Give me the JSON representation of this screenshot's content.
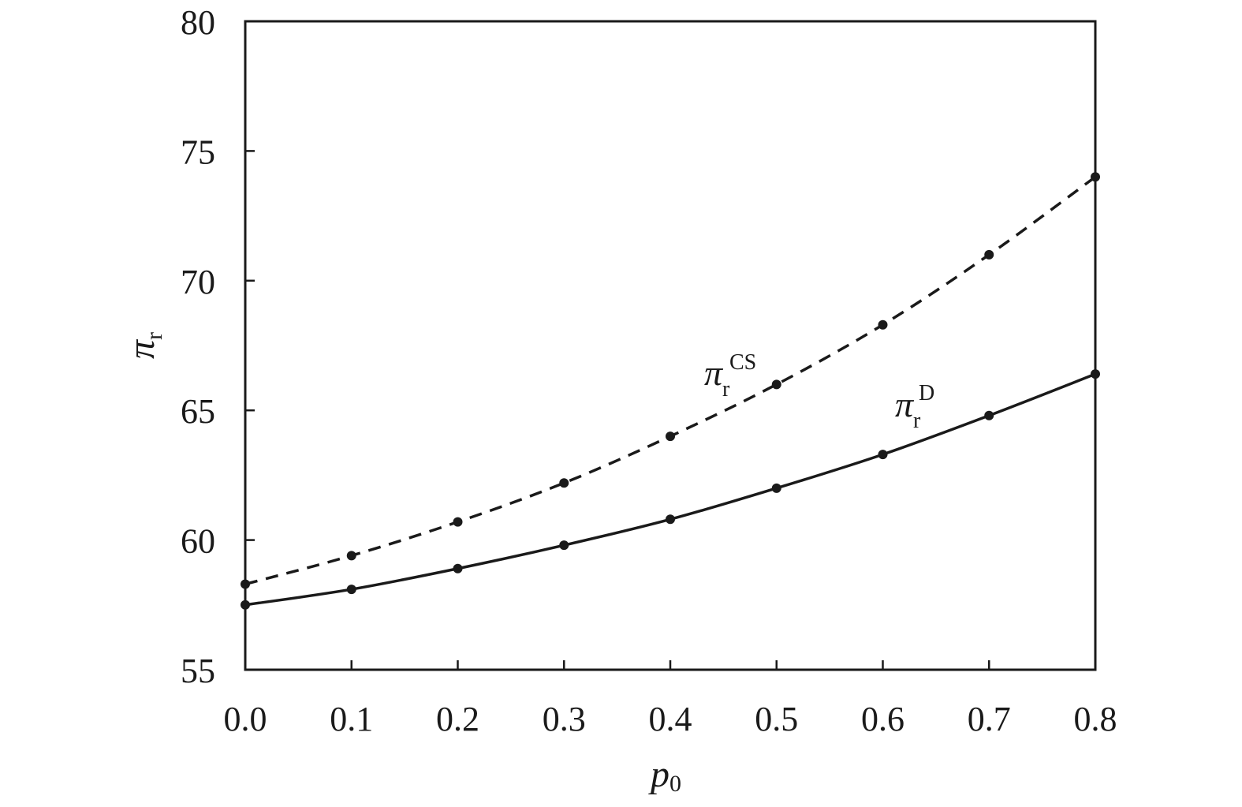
{
  "chart_data": {
    "type": "line",
    "x": [
      0.0,
      0.1,
      0.2,
      0.3,
      0.4,
      0.5,
      0.6,
      0.7,
      0.8
    ],
    "xlim": [
      0.0,
      0.8
    ],
    "ylim": [
      55,
      80
    ],
    "x_ticks": [
      "0.0",
      "0.1",
      "0.2",
      "0.3",
      "0.4",
      "0.5",
      "0.6",
      "0.7",
      "0.8"
    ],
    "y_ticks": [
      "55",
      "60",
      "65",
      "70",
      "75",
      "80"
    ],
    "xlabel": {
      "symbol": "p",
      "sub": "0"
    },
    "ylabel": {
      "symbol": "π",
      "sub": "r"
    },
    "grid": false,
    "series": [
      {
        "name": {
          "symbol": "π",
          "sub": "r",
          "sup": "CS"
        },
        "line_style": "dashed",
        "values": [
          58.3,
          59.4,
          60.7,
          62.2,
          64.0,
          66.0,
          68.3,
          71.0,
          74.0
        ]
      },
      {
        "name": {
          "symbol": "π",
          "sub": "r",
          "sup": "D"
        },
        "line_style": "solid",
        "values": [
          57.5,
          58.1,
          58.9,
          59.8,
          60.8,
          62.0,
          63.3,
          64.8,
          66.4
        ]
      }
    ],
    "line_color": "#1a1a1a"
  }
}
